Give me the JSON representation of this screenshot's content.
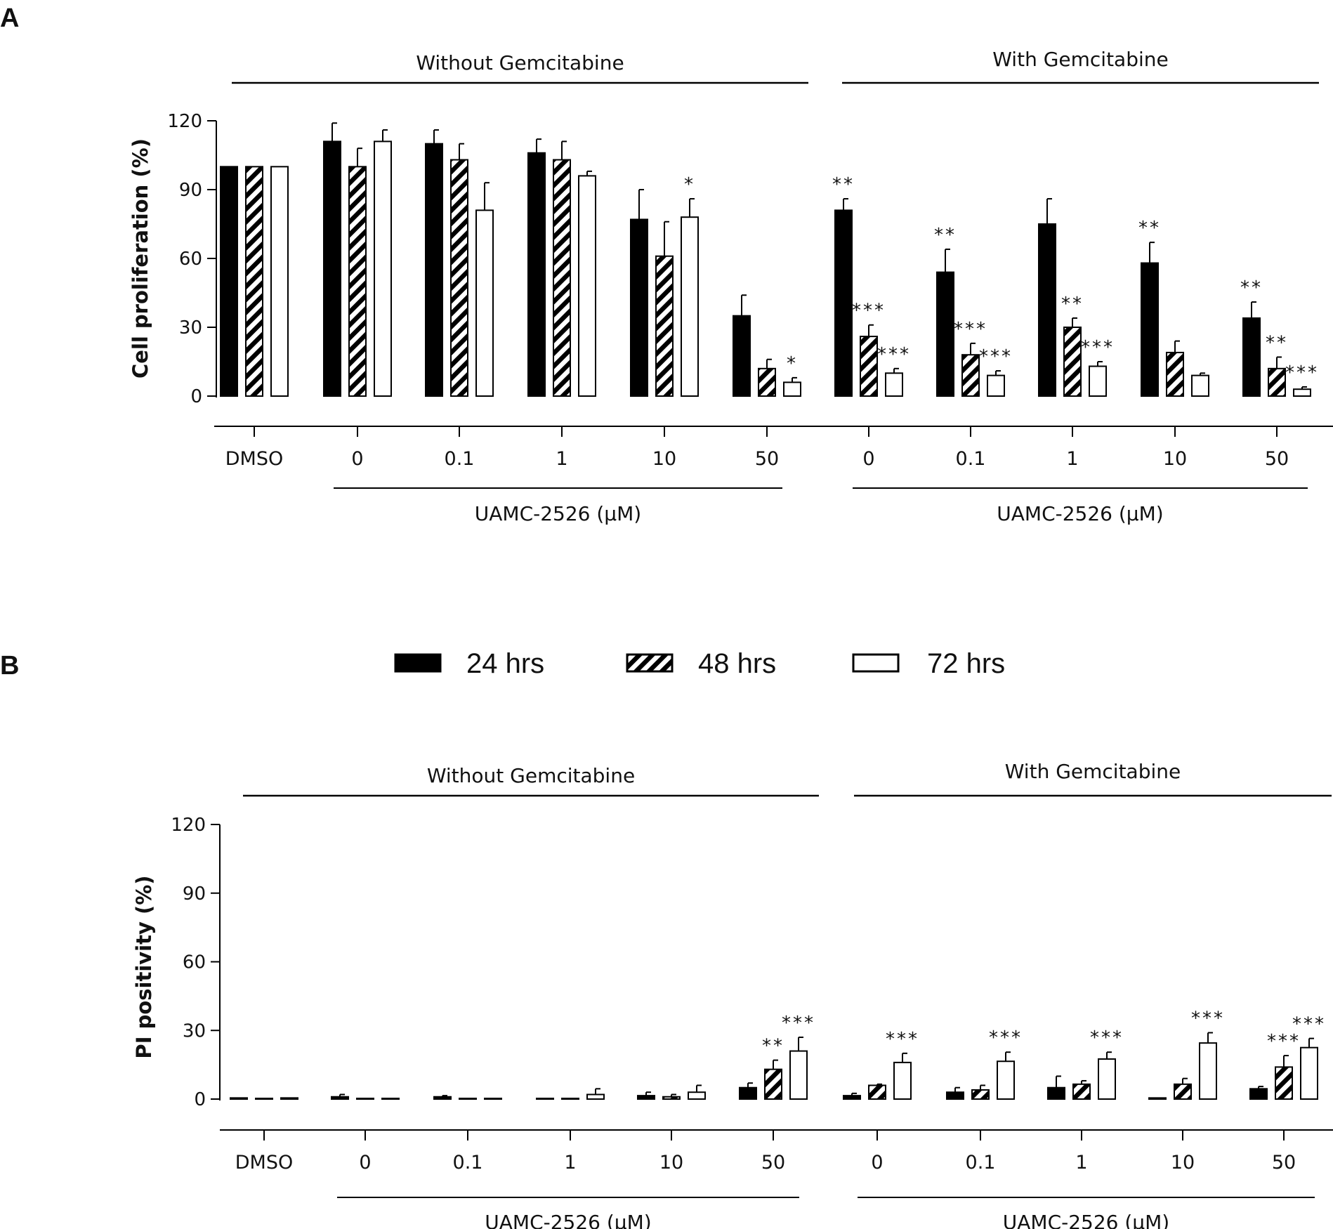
{
  "figure": {
    "legend": [
      {
        "label": "24 hrs",
        "style": "solid"
      },
      {
        "label": "48 hrs",
        "style": "hatched"
      },
      {
        "label": "72 hrs",
        "style": "open"
      }
    ],
    "colors": {
      "bar": "#000000",
      "background": "#ffffff",
      "ink": "#111111"
    }
  },
  "chart_data": [
    {
      "panel": "A",
      "type": "bar",
      "title": "",
      "ylabel": "Cell proliferation (%)",
      "ylim": [
        0,
        120
      ],
      "yticks": [
        0,
        30,
        60,
        90,
        120
      ],
      "groups": [
        {
          "label": "Without Gemcitabine",
          "categories": [
            "DMSO",
            "0",
            "0.1",
            "1",
            "10",
            "50"
          ],
          "axis_label": "UAMC-2526 (μM)"
        },
        {
          "label": "With Gemcitabine",
          "categories": [
            "0",
            "0.1",
            "1",
            "10",
            "50"
          ],
          "axis_label": "UAMC-2526 (μM)"
        }
      ],
      "categories": [
        "DMSO",
        "0",
        "0.1",
        "1",
        "10",
        "50",
        "0",
        "0.1",
        "1",
        "10",
        "50"
      ],
      "series": [
        {
          "name": "24 hrs",
          "style": "solid",
          "values": [
            100,
            111,
            110,
            106,
            77,
            35,
            81,
            54,
            75,
            58,
            34
          ],
          "errors": [
            0,
            8,
            6,
            6,
            13,
            9,
            5,
            10,
            11,
            9,
            7
          ],
          "significance": [
            "",
            "",
            "",
            "",
            "",
            "",
            "**",
            "**",
            "",
            "**",
            "**"
          ]
        },
        {
          "name": "48 hrs",
          "style": "hatched",
          "values": [
            100,
            100,
            103,
            103,
            61,
            12,
            26,
            18,
            30,
            19,
            12
          ],
          "errors": [
            0,
            8,
            7,
            8,
            15,
            4,
            5,
            5,
            4,
            5,
            5
          ],
          "significance": [
            "",
            "",
            "",
            "",
            "",
            "",
            "***",
            "***",
            "**",
            "",
            "**"
          ]
        },
        {
          "name": "72 hrs",
          "style": "open",
          "values": [
            100,
            111,
            81,
            96,
            78,
            6,
            10,
            9,
            13,
            9,
            3
          ],
          "errors": [
            0,
            5,
            12,
            2,
            8,
            2,
            2,
            2,
            2,
            1,
            1
          ],
          "significance": [
            "",
            "",
            "",
            "",
            "*",
            "*",
            "***",
            "***",
            "***",
            "",
            "***"
          ]
        }
      ]
    },
    {
      "panel": "B",
      "type": "bar",
      "title": "",
      "ylabel": "PI positivity (%)",
      "ylim": [
        0,
        120
      ],
      "yticks": [
        0,
        30,
        60,
        90,
        120
      ],
      "groups": [
        {
          "label": "Without Gemcitabine",
          "categories": [
            "DMSO",
            "0",
            "0.1",
            "1",
            "10",
            "50"
          ],
          "axis_label": "UAMC-2526 (μM)"
        },
        {
          "label": "With Gemcitabine",
          "categories": [
            "0",
            "0.1",
            "1",
            "10",
            "50"
          ],
          "axis_label": "UAMC-2526 (μM)"
        }
      ],
      "categories": [
        "DMSO",
        "0",
        "0.1",
        "1",
        "10",
        "50",
        "0",
        "0.1",
        "1",
        "10",
        "50"
      ],
      "series": [
        {
          "name": "24 hrs",
          "style": "solid",
          "values": [
            0.5,
            1,
            1,
            0.3,
            1.5,
            5,
            1.5,
            3,
            5,
            0.5,
            4.5
          ],
          "errors": [
            0,
            1,
            0.5,
            0,
            1.5,
            2,
            1,
            2,
            5,
            0,
            1
          ],
          "significance": [
            "",
            "",
            "",
            "",
            "",
            "",
            "",
            "",
            "",
            "",
            ""
          ]
        },
        {
          "name": "48 hrs",
          "style": "hatched",
          "values": [
            0.3,
            0.3,
            0.3,
            0.3,
            1,
            13,
            6,
            4,
            6.5,
            6.5,
            14
          ],
          "errors": [
            0,
            0,
            0,
            0,
            1,
            4,
            0.5,
            2,
            1.5,
            2.5,
            5
          ],
          "significance": [
            "",
            "",
            "",
            "",
            "",
            "**",
            "",
            "",
            "",
            "",
            "***"
          ]
        },
        {
          "name": "72 hrs",
          "style": "open",
          "values": [
            0.5,
            0.3,
            0.3,
            2,
            3,
            21,
            16,
            16.5,
            17.5,
            24.5,
            22.5
          ],
          "errors": [
            0,
            0,
            0,
            2.5,
            3,
            6,
            4,
            4,
            3,
            4.5,
            4
          ],
          "significance": [
            "",
            "",
            "",
            "",
            "",
            "***",
            "***",
            "***",
            "***",
            "***",
            "***"
          ]
        }
      ]
    }
  ]
}
